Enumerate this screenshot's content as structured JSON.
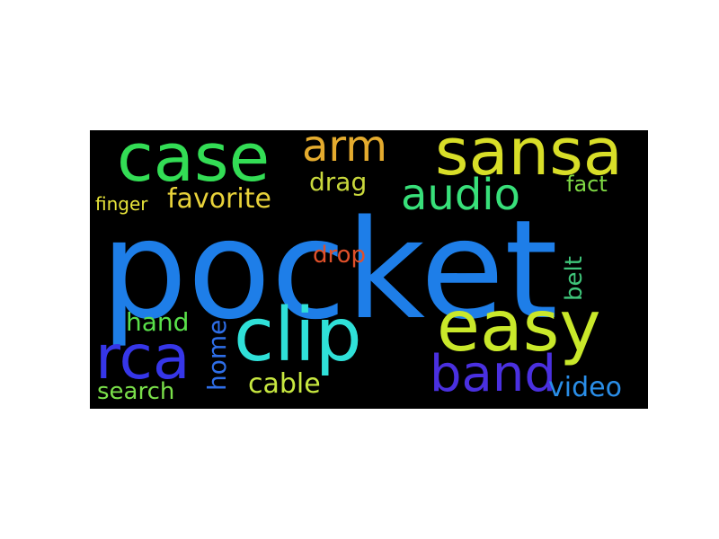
{
  "cloud": {
    "background": "#000000",
    "words": {
      "pocket": {
        "text": "pocket",
        "color": "#1e7ee8"
      },
      "case": {
        "text": "case",
        "color": "#33dd55"
      },
      "arm": {
        "text": "arm",
        "color": "#e4ab2e"
      },
      "sansa": {
        "text": "sansa",
        "color": "#d8de28"
      },
      "audio": {
        "text": "audio",
        "color": "#38e07a"
      },
      "favorite": {
        "text": "favorite",
        "color": "#e8d23a"
      },
      "drag": {
        "text": "drag",
        "color": "#c9d83c"
      },
      "finger": {
        "text": "finger",
        "color": "#e8e53a"
      },
      "fact": {
        "text": "fact",
        "color": "#7fd944"
      },
      "drop": {
        "text": "drop",
        "color": "#e0502a"
      },
      "belt": {
        "text": "belt",
        "color": "#3fc67a"
      },
      "hand": {
        "text": "hand",
        "color": "#59e04a"
      },
      "clip": {
        "text": "clip",
        "color": "#2fe0d8"
      },
      "easy": {
        "text": "easy",
        "color": "#c9e82a"
      },
      "home": {
        "text": "home",
        "color": "#2e6ee8"
      },
      "rca": {
        "text": "rca",
        "color": "#3636e8"
      },
      "band": {
        "text": "band",
        "color": "#4a30e0"
      },
      "cable": {
        "text": "cable",
        "color": "#c8e840"
      },
      "video": {
        "text": "video",
        "color": "#2a8ee8"
      },
      "search": {
        "text": "search",
        "color": "#7ae04a"
      }
    }
  }
}
